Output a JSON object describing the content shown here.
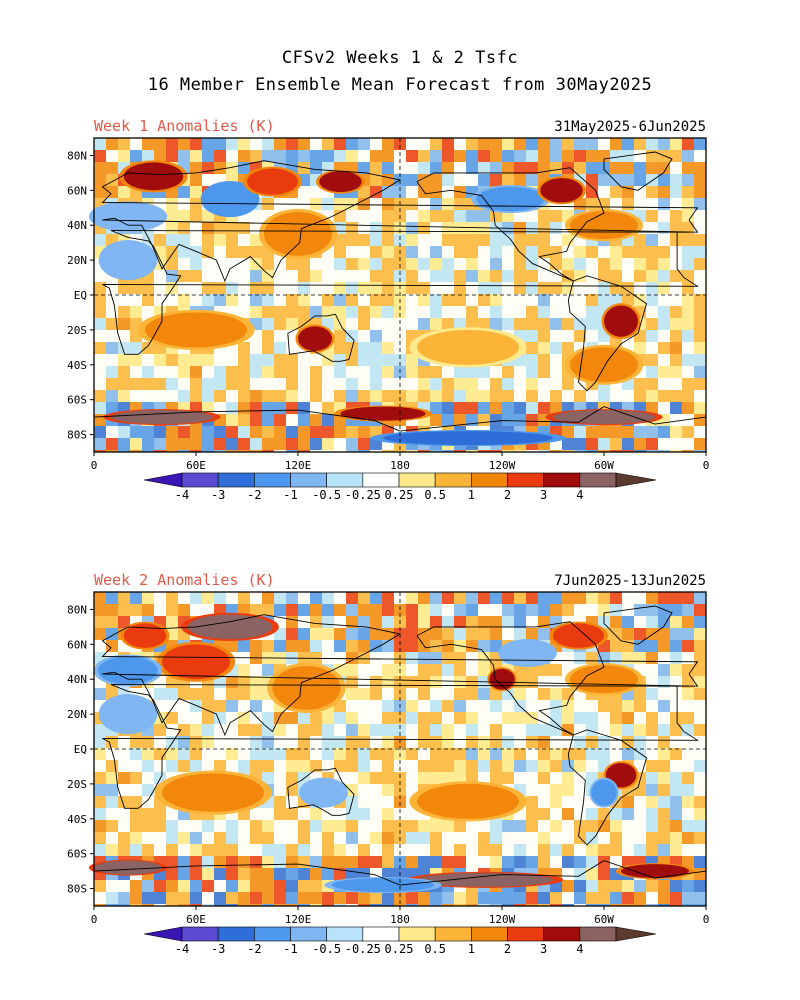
{
  "header": {
    "line1": "CFSv2 Weeks 1 & 2 Tsfc",
    "line2": "16 Member Ensemble Mean Forecast from 30May2025"
  },
  "panels": [
    {
      "title": "Week 1 Anomalies (K)",
      "dates": "31May2025-6Jun2025"
    },
    {
      "title": "Week 2 Anomalies (K)",
      "dates": "7Jun2025-13Jun2025"
    }
  ],
  "axes": {
    "lat_labels": [
      "80N",
      "60N",
      "40N",
      "20N",
      "EQ",
      "20S",
      "40S",
      "60S",
      "80S"
    ],
    "lon_labels": [
      "0",
      "60E",
      "120E",
      "180",
      "120W",
      "60W",
      "0"
    ]
  },
  "colorbar": {
    "labels": [
      "-4",
      "-3",
      "-2",
      "-1",
      "-0.5",
      "-0.25",
      "0.25",
      "0.5",
      "1",
      "2",
      "3",
      "4"
    ],
    "colors": [
      "#3a16b5",
      "#5a4ad2",
      "#2f6ed8",
      "#4d97ec",
      "#7fb6f3",
      "#b9e3fb",
      "#ffffff",
      "#ffe98a",
      "#fbb437",
      "#f2870c",
      "#ea3b0e",
      "#a10c0c",
      "#8a6362",
      "#5c3a2e"
    ]
  },
  "chart_data": {
    "type": "heatmap",
    "variable": "Tsfc anomaly",
    "units": "K",
    "levels": [
      -4,
      -3,
      -2,
      -1,
      -0.5,
      -0.25,
      0.25,
      0.5,
      1,
      2,
      3,
      4
    ],
    "lat_range": [
      -90,
      90
    ],
    "lon_range": [
      0,
      360
    ],
    "panels": [
      {
        "name": "Week 1",
        "regions": [
          {
            "lon": 35,
            "lat": 68,
            "value": 3.5,
            "w": 35,
            "h": 16
          },
          {
            "lon": 80,
            "lat": 55,
            "value": -2,
            "w": 30,
            "h": 18
          },
          {
            "lon": 105,
            "lat": 65,
            "value": 2,
            "w": 30,
            "h": 15
          },
          {
            "lon": 145,
            "lat": 65,
            "value": 3,
            "w": 25,
            "h": 12
          },
          {
            "lon": 20,
            "lat": 45,
            "value": -1,
            "w": 40,
            "h": 15
          },
          {
            "lon": 120,
            "lat": 35,
            "value": 1,
            "w": 40,
            "h": 25
          },
          {
            "lon": 245,
            "lat": 55,
            "value": -1.5,
            "w": 40,
            "h": 14
          },
          {
            "lon": 275,
            "lat": 60,
            "value": 3,
            "w": 25,
            "h": 14
          },
          {
            "lon": 300,
            "lat": 40,
            "value": 1.5,
            "w": 40,
            "h": 16
          },
          {
            "lon": 310,
            "lat": -15,
            "value": 3,
            "w": 20,
            "h": 18
          },
          {
            "lon": 130,
            "lat": -25,
            "value": 3,
            "w": 20,
            "h": 14
          },
          {
            "lon": 60,
            "lat": -20,
            "value": 1,
            "w": 60,
            "h": 20
          },
          {
            "lon": 220,
            "lat": -30,
            "value": 0.5,
            "w": 60,
            "h": 20
          },
          {
            "lon": 300,
            "lat": -40,
            "value": 1,
            "w": 40,
            "h": 20
          },
          {
            "lon": 40,
            "lat": -70,
            "value": 4,
            "w": 60,
            "h": 8
          },
          {
            "lon": 170,
            "lat": -68,
            "value": 3,
            "w": 50,
            "h": 8
          },
          {
            "lon": 300,
            "lat": -70,
            "value": 4,
            "w": 60,
            "h": 8
          },
          {
            "lon": 220,
            "lat": -82,
            "value": -3,
            "w": 100,
            "h": 8
          },
          {
            "lon": 20,
            "lat": 20,
            "value": -1,
            "w": 30,
            "h": 20
          }
        ]
      },
      {
        "name": "Week 2",
        "regions": [
          {
            "lon": 80,
            "lat": 70,
            "value": 4,
            "w": 50,
            "h": 14
          },
          {
            "lon": 60,
            "lat": 50,
            "value": 2,
            "w": 40,
            "h": 20
          },
          {
            "lon": 30,
            "lat": 65,
            "value": 2,
            "w": 25,
            "h": 14
          },
          {
            "lon": 20,
            "lat": 45,
            "value": -1.5,
            "w": 35,
            "h": 16
          },
          {
            "lon": 125,
            "lat": 35,
            "value": 1,
            "w": 40,
            "h": 25
          },
          {
            "lon": 240,
            "lat": 40,
            "value": 3,
            "w": 15,
            "h": 12
          },
          {
            "lon": 255,
            "lat": 55,
            "value": -1,
            "w": 30,
            "h": 14
          },
          {
            "lon": 285,
            "lat": 65,
            "value": 2,
            "w": 30,
            "h": 14
          },
          {
            "lon": 300,
            "lat": 40,
            "value": 1,
            "w": 40,
            "h": 16
          },
          {
            "lon": 310,
            "lat": -15,
            "value": 3,
            "w": 18,
            "h": 14
          },
          {
            "lon": 300,
            "lat": -25,
            "value": -1.5,
            "w": 15,
            "h": 15
          },
          {
            "lon": 135,
            "lat": -25,
            "value": -1,
            "w": 25,
            "h": 15
          },
          {
            "lon": 70,
            "lat": -25,
            "value": 1,
            "w": 60,
            "h": 22
          },
          {
            "lon": 220,
            "lat": -30,
            "value": 1,
            "w": 60,
            "h": 20
          },
          {
            "lon": 20,
            "lat": -68,
            "value": 4,
            "w": 40,
            "h": 8
          },
          {
            "lon": 230,
            "lat": -75,
            "value": 4,
            "w": 80,
            "h": 8
          },
          {
            "lon": 170,
            "lat": -78,
            "value": -1.5,
            "w": 60,
            "h": 8
          },
          {
            "lon": 330,
            "lat": -70,
            "value": 3,
            "w": 40,
            "h": 8
          },
          {
            "lon": 20,
            "lat": 20,
            "value": -1,
            "w": 30,
            "h": 20
          }
        ]
      }
    ]
  }
}
